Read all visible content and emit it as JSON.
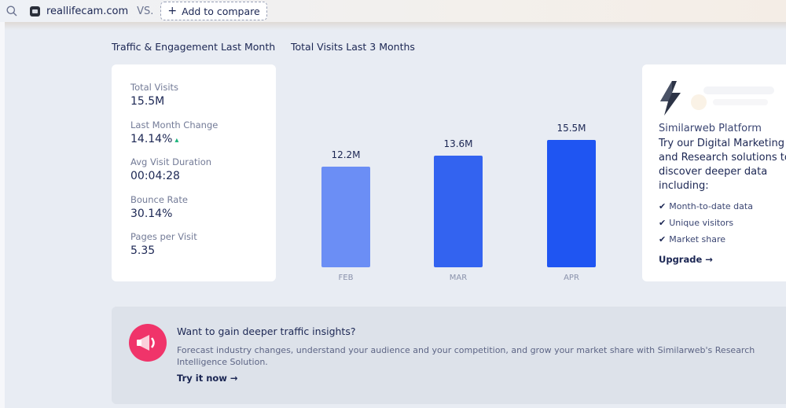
{
  "header": {
    "search_icon": "search-icon",
    "domain": "reallifecam.com",
    "vs_label": "VS.",
    "compare_plus": "+",
    "compare_label": "Add to compare"
  },
  "sections": {
    "traffic_title": "Traffic & Engagement Last Month",
    "visits_title": "Total Visits Last 3 Months"
  },
  "stats": [
    {
      "label": "Total Visits",
      "value": "15.5M"
    },
    {
      "label": "Last Month Change",
      "value": "14.14%",
      "trend": "up"
    },
    {
      "label": "Avg Visit Duration",
      "value": "00:04:28"
    },
    {
      "label": "Bounce Rate",
      "value": "30.14%"
    },
    {
      "label": "Pages per Visit",
      "value": "5.35"
    }
  ],
  "chart_data": {
    "type": "bar",
    "title": "Total Visits Last 3 Months",
    "categories": [
      "FEB",
      "MAR",
      "APR"
    ],
    "values": [
      12.2,
      13.6,
      15.5
    ],
    "value_labels": [
      "12.2M",
      "13.6M",
      "15.5M"
    ],
    "colors": [
      "#6b8ef5",
      "#3363f0",
      "#1f55f2"
    ],
    "unit": "M",
    "grid": false
  },
  "upgrade": {
    "platform": "Similarweb Platform",
    "headline": "Try our Digital Marketing and Research solutions to discover deeper data including:",
    "features": [
      "Month-to-date data",
      "Unique visitors",
      "Market share"
    ],
    "link": "Upgrade →"
  },
  "promo": {
    "title": "Want to gain deeper traffic insights?",
    "description": "Forecast industry changes, understand your audience and your competition, and grow your market share with Similarweb's Research Intelligence Solution.",
    "cta": "Try it now →"
  },
  "colors": {
    "accent": "#1f55f2",
    "positive": "#19b37a",
    "promo_icon": "#f0346a"
  }
}
